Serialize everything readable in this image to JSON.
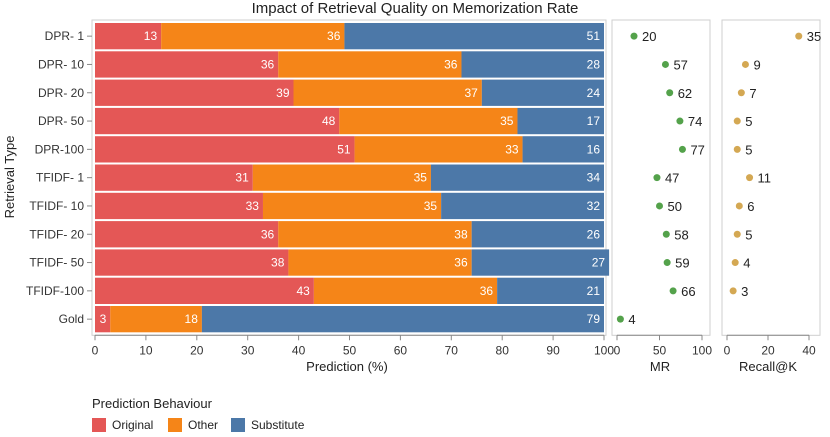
{
  "chart_data": {
    "type": "bar",
    "title": "Impact of Retrieval Quality on Memorization Rate",
    "ylabel": "Retrieval Type",
    "categories": [
      "DPR-  1",
      "DPR- 10",
      "DPR- 20",
      "DPR- 50",
      "DPR-100",
      "TFIDF-  1",
      "TFIDF- 10",
      "TFIDF- 20",
      "TFIDF- 50",
      "TFIDF-100",
      "Gold"
    ],
    "panels": [
      {
        "id": "prediction",
        "type": "stacked-bar-horizontal",
        "xlabel": "Prediction (%)",
        "xlim": [
          0,
          100
        ],
        "xticks": [
          0,
          10,
          20,
          30,
          40,
          50,
          60,
          70,
          80,
          90,
          100
        ],
        "series": [
          {
            "name": "Original",
            "color": "#e45756",
            "values": [
              13,
              36,
              39,
              48,
              51,
              31,
              33,
              36,
              38,
              43,
              3
            ]
          },
          {
            "name": "Other",
            "color": "#f58518",
            "values": [
              36,
              36,
              37,
              35,
              33,
              35,
              35,
              38,
              36,
              36,
              18
            ]
          },
          {
            "name": "Substitute",
            "color": "#4c78a8",
            "values": [
              51,
              28,
              24,
              17,
              16,
              34,
              32,
              26,
              27,
              21,
              79
            ]
          }
        ]
      },
      {
        "id": "mr",
        "type": "scatter",
        "xlabel": "MR",
        "xlim": [
          0,
          100
        ],
        "xticks": [
          0,
          50,
          100
        ],
        "color": "#54a24b",
        "values": [
          20,
          57,
          62,
          74,
          77,
          47,
          50,
          58,
          59,
          66,
          4
        ]
      },
      {
        "id": "recall",
        "type": "scatter",
        "xlabel": "Recall@K",
        "xlim": [
          0,
          40
        ],
        "xticks": [
          0,
          20,
          40
        ],
        "color": "#d4a853",
        "values": [
          35,
          9,
          7,
          5,
          5,
          11,
          6,
          5,
          4,
          3,
          null
        ]
      }
    ],
    "legend": {
      "title": "Prediction Behaviour",
      "position": "bottom-left",
      "items": [
        "Original",
        "Other",
        "Substitute"
      ]
    },
    "grid": false
  }
}
